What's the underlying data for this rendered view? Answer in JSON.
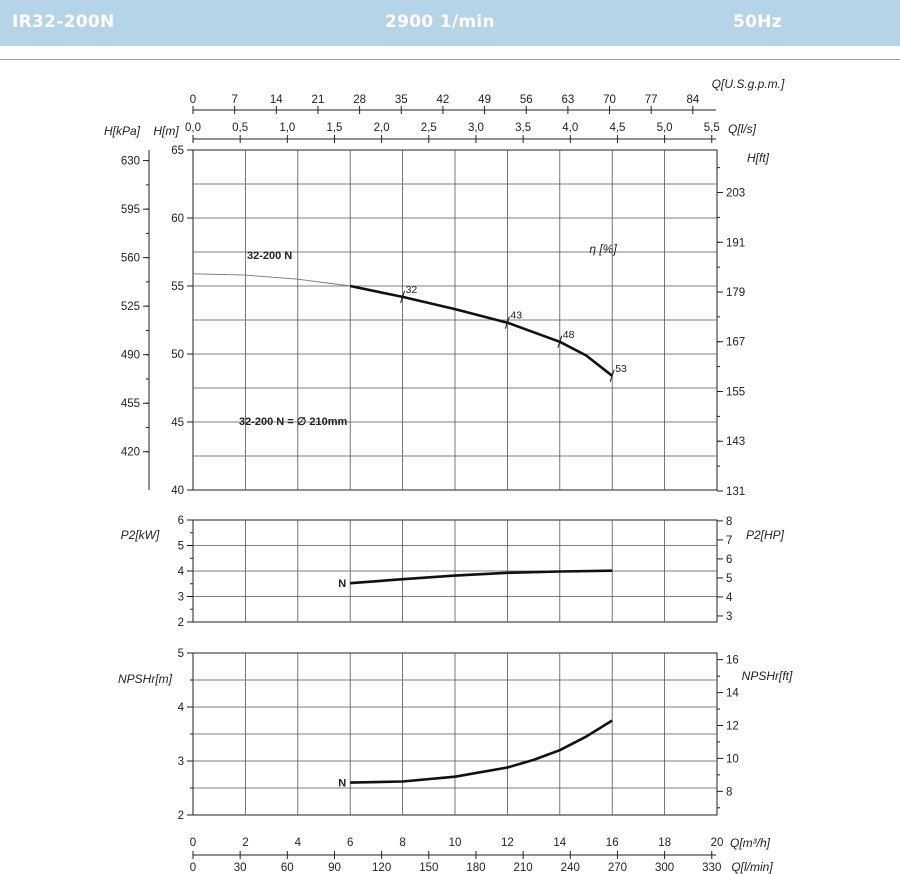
{
  "header": {
    "model": "IR32-200N",
    "speed": "2900 1/min",
    "frequency": "50Hz"
  },
  "colors": {
    "header_bg": "#b6d4e8",
    "header_text": "#ffffff",
    "curve": "#111111",
    "grid": "#444444"
  },
  "chart_data": [
    {
      "type": "line",
      "panel": "head",
      "x_top_usgpm": {
        "label": "Q[U.S.g.p.m.]",
        "ticks": [
          "0",
          "7",
          "14",
          "21",
          "28",
          "35",
          "42",
          "49",
          "56",
          "63",
          "70",
          "77",
          "84"
        ]
      },
      "x_top_ls": {
        "label": "Q[l/s]",
        "ticks": [
          "0,0",
          "0,5",
          "1,0",
          "1,5",
          "2,0",
          "2,5",
          "3,0",
          "3,5",
          "4,0",
          "4,5",
          "5,0",
          "5,5"
        ]
      },
      "y_left_m": {
        "label": "H[m]",
        "ticks": [
          40,
          45,
          50,
          55,
          60,
          65
        ],
        "ylim": [
          40,
          65
        ]
      },
      "y_left_kpa": {
        "label": "H[kPa]",
        "ticks": [
          420,
          455,
          490,
          525,
          560,
          595,
          630
        ]
      },
      "y_right_ft": {
        "label": "H[ft]",
        "ticks": [
          131,
          143,
          155,
          167,
          179,
          191,
          203
        ]
      },
      "series": [
        {
          "name": "32-200 N",
          "x": [
            0,
            2,
            4,
            6,
            8,
            10,
            12,
            14,
            15,
            16
          ],
          "y": [
            55.9,
            55.8,
            55.5,
            55.0,
            54.2,
            53.3,
            52.3,
            50.9,
            49.9,
            48.4
          ]
        }
      ],
      "operating_from_x": 6,
      "efficiency_label": "η [%]",
      "efficiency_marks": [
        {
          "x": 8,
          "y": 54.2,
          "label": "32"
        },
        {
          "x": 12,
          "y": 52.3,
          "label": "43"
        },
        {
          "x": 14,
          "y": 50.9,
          "label": "48"
        },
        {
          "x": 16,
          "y": 48.4,
          "label": "53"
        }
      ],
      "annotation": "32-200 N = ∅ 210mm",
      "grid": true
    },
    {
      "type": "line",
      "panel": "power",
      "y_left": {
        "label": "P2[kW]",
        "ticks": [
          2,
          3,
          4,
          5,
          6
        ],
        "ylim": [
          2,
          6
        ]
      },
      "y_right": {
        "label": "P2[HP]",
        "ticks": [
          3,
          4,
          5,
          6,
          7,
          8
        ]
      },
      "series": [
        {
          "name": "N",
          "x": [
            6,
            8,
            10,
            12,
            14,
            16
          ],
          "y": [
            3.52,
            3.68,
            3.82,
            3.93,
            3.98,
            4.01
          ]
        }
      ],
      "grid": true
    },
    {
      "type": "line",
      "panel": "npsh",
      "y_left": {
        "label": "NPSHr[m]",
        "ticks": [
          2,
          3,
          4,
          5
        ],
        "ylim": [
          2,
          5
        ]
      },
      "y_right": {
        "label": "NPSHr[ft]",
        "ticks": [
          8,
          10,
          12,
          14,
          16
        ]
      },
      "series": [
        {
          "name": "N",
          "x": [
            6,
            8,
            10,
            12,
            13,
            14,
            15,
            16
          ],
          "y": [
            2.6,
            2.62,
            2.71,
            2.88,
            3.02,
            3.2,
            3.45,
            3.75
          ]
        }
      ],
      "grid": true
    }
  ],
  "x_bottom_m3h": {
    "label": "Q[m³/h]",
    "ticks": [
      "0",
      "2",
      "4",
      "6",
      "8",
      "10",
      "12",
      "14",
      "16",
      "18",
      "20"
    ],
    "xlim": [
      0,
      20
    ]
  },
  "x_bottom_lmin": {
    "label": "Q[l/min]",
    "ticks": [
      "0",
      "30",
      "60",
      "90",
      "120",
      "150",
      "180",
      "210",
      "240",
      "270",
      "300",
      "330"
    ]
  }
}
